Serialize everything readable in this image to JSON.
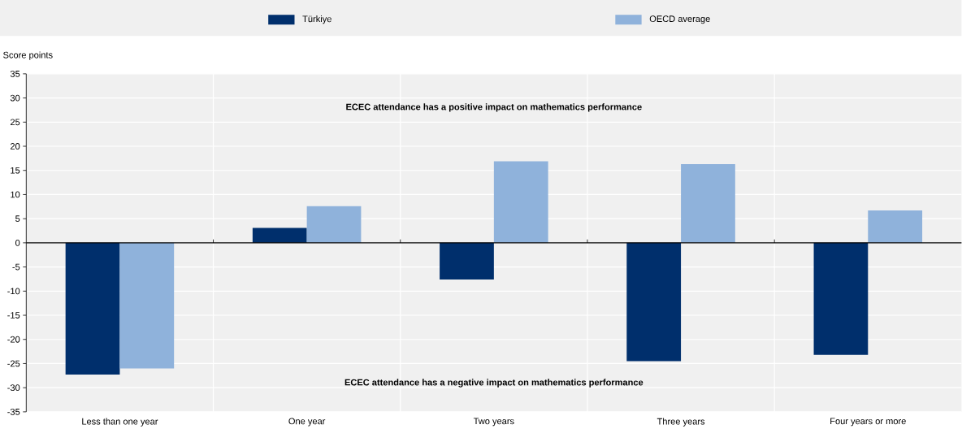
{
  "chart_data": {
    "type": "bar",
    "ylabel": "Score points",
    "categories": [
      "Less than one year",
      "One year",
      "Two years",
      "Three years",
      "Four years or more"
    ],
    "series": [
      {
        "name": "Türkiye",
        "color": "#002f6c",
        "values": [
          -27.3,
          3.1,
          -7.6,
          -24.5,
          -23.2
        ]
      },
      {
        "name": "OECD average",
        "color": "#8fb2db",
        "values": [
          -26.0,
          7.6,
          16.9,
          16.3,
          6.7
        ]
      }
    ],
    "ylim": [
      -35,
      35
    ],
    "yticks": [
      -35,
      -30,
      -25,
      -20,
      -15,
      -10,
      -5,
      0,
      5,
      10,
      15,
      20,
      25,
      30,
      35
    ],
    "grid": true,
    "legend": "top",
    "annotations": [
      "ECEC attendance has a positive impact on mathematics performance",
      "ECEC attendance has a negative impact on mathematics performance"
    ]
  }
}
